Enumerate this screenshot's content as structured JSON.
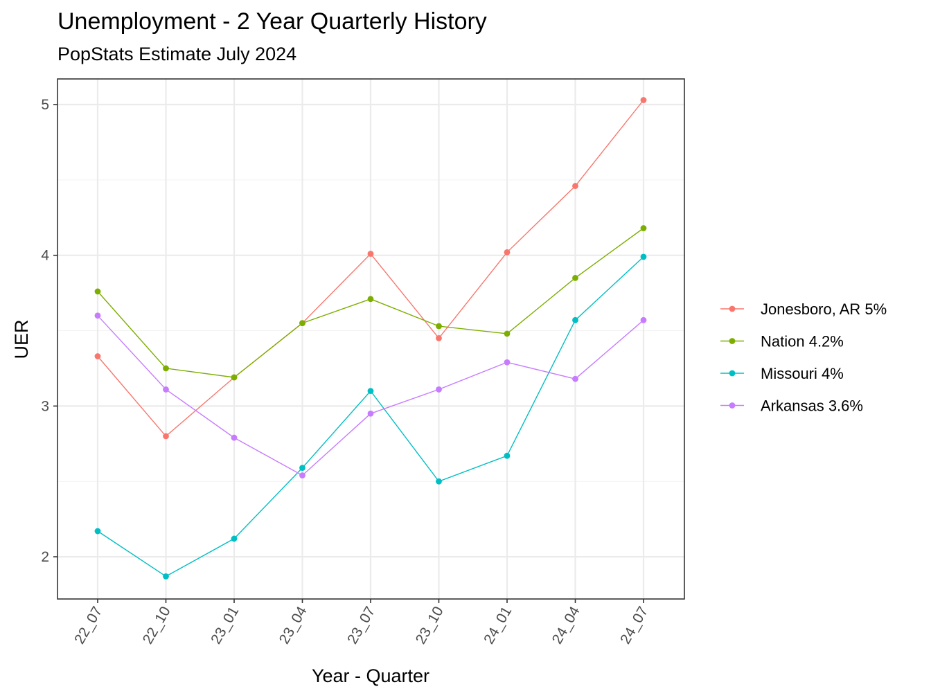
{
  "chart_data": {
    "type": "line",
    "title": "Unemployment - 2 Year Quarterly History",
    "subtitle": "PopStats Estimate July 2024",
    "xlabel": "Year - Quarter",
    "ylabel": "UER",
    "categories": [
      "22_07",
      "22_10",
      "23_01",
      "23_04",
      "23_07",
      "23_10",
      "24_01",
      "24_04",
      "24_07"
    ],
    "ylim": [
      1.72,
      5.17
    ],
    "yticks": [
      2,
      3,
      4,
      5
    ],
    "grid": true,
    "legend_position": "right",
    "series": [
      {
        "name": "Jonesboro, AR 5%",
        "color": "#F8766D",
        "values": [
          3.33,
          2.8,
          3.19,
          3.55,
          4.01,
          3.45,
          4.02,
          4.46,
          5.03
        ]
      },
      {
        "name": "Nation 4.2%",
        "color": "#7CAE00",
        "values": [
          3.76,
          3.25,
          3.19,
          3.55,
          3.71,
          3.53,
          3.48,
          3.85,
          4.18
        ]
      },
      {
        "name": "Missouri 4%",
        "color": "#00BFC4",
        "values": [
          2.17,
          1.87,
          2.12,
          2.59,
          3.1,
          2.5,
          2.67,
          3.57,
          3.99
        ]
      },
      {
        "name": "Arkansas 3.6%",
        "color": "#C77CFF",
        "values": [
          3.6,
          3.11,
          2.79,
          2.54,
          2.95,
          3.11,
          3.29,
          3.18,
          3.57
        ]
      }
    ]
  }
}
